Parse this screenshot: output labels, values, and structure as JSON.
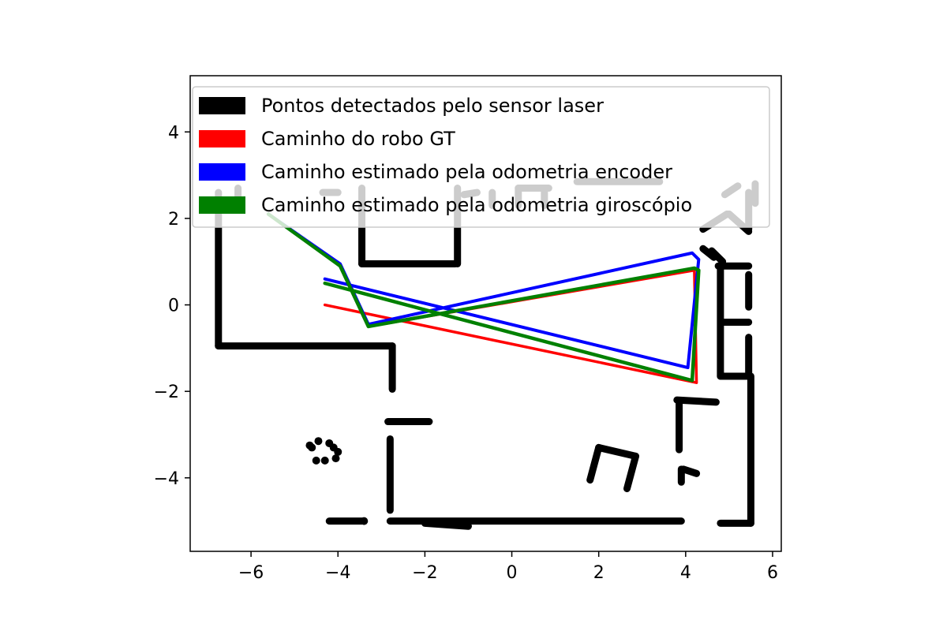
{
  "chart_data": {
    "type": "scatter",
    "title": "",
    "xlabel": "",
    "ylabel": "",
    "xlim": [
      -7.4,
      6.2
    ],
    "ylim": [
      -5.7,
      5.3
    ],
    "xticks": [
      -6,
      -4,
      -2,
      0,
      2,
      4,
      6
    ],
    "yticks": [
      -4,
      -2,
      0,
      2,
      4
    ],
    "xtick_labels": [
      "−6",
      "−4",
      "−2",
      "0",
      "2",
      "4",
      "6"
    ],
    "ytick_labels": [
      "−4",
      "−2",
      "0",
      "2",
      "4"
    ],
    "grid": false,
    "legend_position": "top-left",
    "series": [
      {
        "name": "Pontos detectados pelo sensor laser",
        "color": "#000000",
        "kind": "points",
        "segments": [
          [
            [
              -6.75,
              2.6
            ],
            [
              -6.75,
              -0.95
            ]
          ],
          [
            [
              -6.75,
              -0.95
            ],
            [
              -2.75,
              -0.95
            ]
          ],
          [
            [
              -2.75,
              -0.95
            ],
            [
              -2.75,
              -1.95
            ]
          ],
          [
            [
              -3.45,
              2.7
            ],
            [
              -3.45,
              0.95
            ]
          ],
          [
            [
              -3.45,
              0.95
            ],
            [
              -1.3,
              0.95
            ]
          ],
          [
            [
              -1.25,
              2.7
            ],
            [
              -1.25,
              0.95
            ]
          ],
          [
            [
              -2.85,
              -2.7
            ],
            [
              -1.9,
              -2.7
            ]
          ],
          [
            [
              -2.8,
              -3.1
            ],
            [
              -2.8,
              -4.75
            ]
          ],
          [
            [
              -4.2,
              -5.0
            ],
            [
              -3.45,
              -5.0
            ]
          ],
          [
            [
              -2.8,
              -5.0
            ],
            [
              3.9,
              -5.0
            ]
          ],
          [
            [
              -2.0,
              -5.05
            ],
            [
              -1.0,
              -5.12
            ]
          ],
          [
            [
              4.8,
              -5.05
            ],
            [
              5.5,
              -5.05
            ]
          ],
          [
            [
              5.5,
              -5.05
            ],
            [
              5.5,
              -1.65
            ]
          ],
          [
            [
              4.8,
              -1.65
            ],
            [
              5.45,
              -1.65
            ]
          ],
          [
            [
              4.8,
              0.9
            ],
            [
              4.8,
              -1.65
            ]
          ],
          [
            [
              4.75,
              0.9
            ],
            [
              5.45,
              0.9
            ]
          ],
          [
            [
              5.45,
              0.7
            ],
            [
              5.45,
              -0.05
            ]
          ],
          [
            [
              4.85,
              -0.4
            ],
            [
              5.45,
              -0.4
            ]
          ],
          [
            [
              5.45,
              -0.75
            ],
            [
              5.45,
              -1.65
            ]
          ],
          [
            [
              4.6,
              1.25
            ],
            [
              4.85,
              1.0
            ]
          ],
          [
            [
              4.4,
              1.3
            ],
            [
              4.65,
              1.1
            ]
          ],
          [
            [
              4.4,
              1.75
            ],
            [
              4.95,
              2.1
            ]
          ],
          [
            [
              5.0,
              2.1
            ],
            [
              5.45,
              1.7
            ]
          ],
          [
            [
              5.45,
              2.6
            ],
            [
              5.45,
              1.75
            ]
          ],
          [
            [
              3.8,
              -2.2
            ],
            [
              4.7,
              -2.25
            ]
          ],
          [
            [
              3.85,
              -2.25
            ],
            [
              3.85,
              -3.35
            ]
          ],
          [
            [
              3.9,
              -3.8
            ],
            [
              3.9,
              -4.1
            ]
          ],
          [
            [
              3.95,
              -3.8
            ],
            [
              4.25,
              -3.9
            ]
          ],
          [
            [
              1.8,
              -4.05
            ],
            [
              2.0,
              -3.3
            ]
          ],
          [
            [
              2.0,
              -3.3
            ],
            [
              2.85,
              -3.5
            ]
          ],
          [
            [
              2.85,
              -3.5
            ],
            [
              2.65,
              -4.25
            ]
          ],
          [
            [
              -4.35,
              2.6
            ],
            [
              -4.0,
              2.6
            ]
          ],
          [
            [
              -6.3,
              2.7
            ],
            [
              -6.3,
              2.4
            ]
          ],
          [
            [
              -0.45,
              2.6
            ],
            [
              -0.45,
              2.3
            ]
          ],
          [
            [
              -1.1,
              2.55
            ],
            [
              -0.8,
              2.6
            ]
          ],
          [
            [
              0.15,
              2.7
            ],
            [
              0.85,
              2.7
            ]
          ],
          [
            [
              0.15,
              2.7
            ],
            [
              0.15,
              2.3
            ]
          ],
          [
            [
              0.75,
              2.7
            ],
            [
              0.75,
              2.3
            ]
          ],
          [
            [
              1.5,
              2.85
            ],
            [
              3.4,
              2.85
            ]
          ],
          [
            [
              4.9,
              2.55
            ],
            [
              5.2,
              2.75
            ]
          ],
          [
            [
              5.6,
              2.8
            ],
            [
              5.6,
              2.35
            ]
          ]
        ],
        "dots": [
          [
            -4.65,
            -3.25
          ],
          [
            -4.45,
            -3.15
          ],
          [
            -4.2,
            -3.2
          ],
          [
            -4.1,
            -3.3
          ],
          [
            -4.0,
            -3.4
          ],
          [
            -4.5,
            -3.6
          ],
          [
            -4.05,
            -3.55
          ],
          [
            -4.6,
            -3.3
          ],
          [
            -4.3,
            -3.6
          ],
          [
            -3.4,
            -5.0
          ]
        ]
      },
      {
        "name": "Caminho do robo GT",
        "color": "#ff0000",
        "kind": "line",
        "x": [
          -5.6,
          -3.95,
          -3.3,
          4.2,
          4.25,
          -4.3
        ],
        "y": [
          2.1,
          0.9,
          -0.5,
          0.8,
          -1.8,
          0.0
        ]
      },
      {
        "name": "Caminho estimado pela odometria encoder",
        "color": "#0000ff",
        "kind": "line",
        "x": [
          -5.6,
          -3.95,
          -3.3,
          4.15,
          4.3,
          4.05,
          -4.3
        ],
        "y": [
          2.1,
          0.95,
          -0.45,
          1.2,
          1.05,
          -1.45,
          0.6
        ]
      },
      {
        "name": "Caminho estimado pela odometria giroscópio",
        "color": "#008000",
        "kind": "line",
        "x": [
          -5.6,
          -3.95,
          -3.3,
          4.2,
          4.3,
          4.15,
          -4.3
        ],
        "y": [
          2.1,
          0.9,
          -0.5,
          0.85,
          0.8,
          -1.75,
          0.5
        ]
      }
    ]
  }
}
